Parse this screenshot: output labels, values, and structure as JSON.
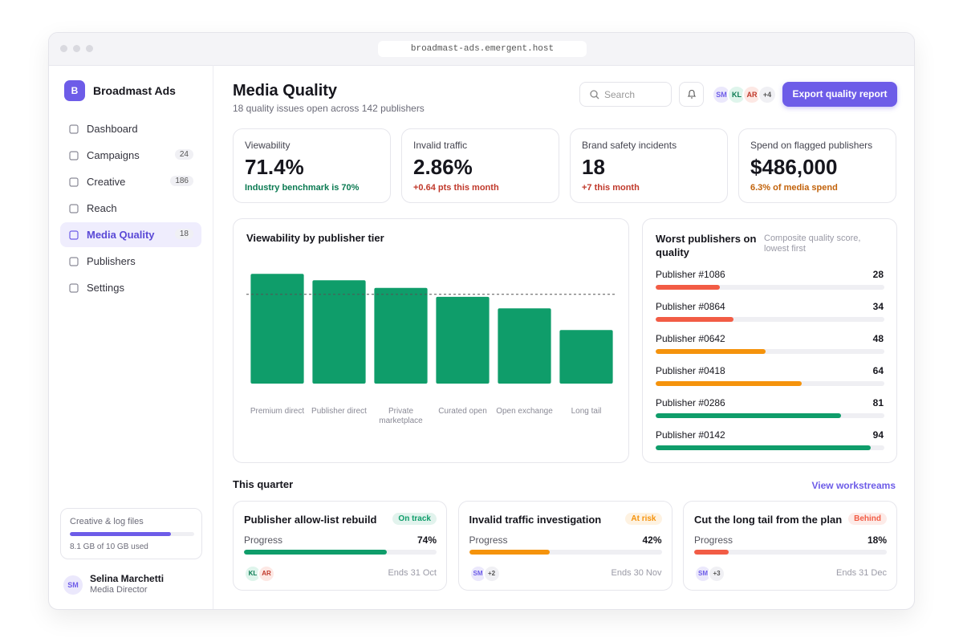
{
  "browser": {
    "url": "broadmast-ads.emergent.host"
  },
  "sidebar": {
    "brand_initial": "B",
    "brand": "Broadmast Ads",
    "nav": [
      {
        "label": "Dashboard"
      },
      {
        "label": "Campaigns",
        "badge": 24
      },
      {
        "label": "Creative",
        "badge": 186
      },
      {
        "label": "Reach"
      },
      {
        "label": "Media Quality",
        "badge": 18,
        "active": true
      },
      {
        "label": "Publishers"
      },
      {
        "label": "Settings"
      }
    ],
    "storage": {
      "title": "Creative & log files",
      "used": 8.1,
      "total": 10,
      "label": "8.1 GB of 10 GB used",
      "color": "#6d5ce8"
    },
    "user": {
      "initials": "SM",
      "name": "Selina Marchetti",
      "role": "Media Director"
    }
  },
  "header": {
    "title": "Media Quality",
    "subtitle": "18 quality issues open across 142 publishers",
    "search": "Search",
    "avatars": [
      "SM",
      "KL",
      "AR"
    ],
    "avatar_more": "+4",
    "button": "Export quality report"
  },
  "kpis": [
    {
      "label": "Viewability",
      "value": "71.4%",
      "note": "Industry benchmark is 70%",
      "note_color": "#0b7a52"
    },
    {
      "label": "Invalid traffic",
      "value": "2.86%",
      "note": "+0.64 pts this month",
      "note_color": "#c0392b"
    },
    {
      "label": "Brand safety incidents",
      "value": "18",
      "note": "+7 this month",
      "note_color": "#c0392b"
    },
    {
      "label": "Spend on flagged publishers",
      "value": "$486,000",
      "note": "6.3% of media spend",
      "note_color": "#c2620a"
    }
  ],
  "chart_data": {
    "type": "bar",
    "title": "Viewability by publisher tier",
    "categories": [
      "Premium direct",
      "Publisher direct",
      "Private marketplace",
      "Curated open",
      "Open exchange",
      "Long tail"
    ],
    "values": [
      86,
      81,
      75,
      68,
      59,
      42
    ],
    "color": "#0f9d6a",
    "ylim": [
      0,
      100
    ],
    "benchmark": 70
  },
  "worst_publishers": {
    "title": "Worst publishers on quality",
    "subtitle": "Composite quality score, lowest first",
    "max": 100,
    "items": [
      {
        "name": "Publisher #1086",
        "score": 28,
        "color": "#f25c45"
      },
      {
        "name": "Publisher #0864",
        "score": 34,
        "color": "#f25c45"
      },
      {
        "name": "Publisher #0642",
        "score": 48,
        "color": "#f5930c"
      },
      {
        "name": "Publisher #0418",
        "score": 64,
        "color": "#f5930c"
      },
      {
        "name": "Publisher #0286",
        "score": 81,
        "color": "#0f9d6a"
      },
      {
        "name": "Publisher #0142",
        "score": 94,
        "color": "#0f9d6a"
      }
    ]
  },
  "quarter": {
    "title": "This quarter",
    "link": "View workstreams",
    "cards": [
      {
        "title": "Publisher allow-list rebuild",
        "status": "On track",
        "color": "#0f9d6a",
        "progress_label": "Progress",
        "progress": 74,
        "progress_text": "74%",
        "avatars": [
          "KL",
          "AR"
        ],
        "due": "Ends 31 Oct"
      },
      {
        "title": "Invalid traffic investigation",
        "status": "At risk",
        "color": "#f5930c",
        "progress_label": "Progress",
        "progress": 42,
        "progress_text": "42%",
        "avatars": [
          "SM",
          "+2"
        ],
        "due": "Ends 30 Nov"
      },
      {
        "title": "Cut the long tail from the plan",
        "status": "Behind",
        "color": "#f25c45",
        "progress_label": "Progress",
        "progress": 18,
        "progress_text": "18%",
        "avatars": [
          "SM",
          "+3"
        ],
        "due": "Ends 31 Dec"
      }
    ]
  }
}
